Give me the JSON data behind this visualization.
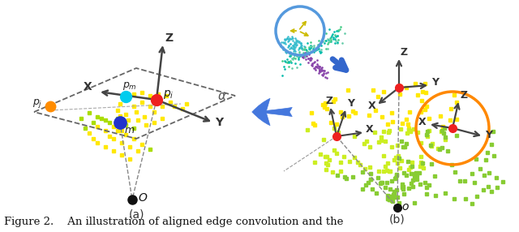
{
  "fig_width": 6.4,
  "fig_height": 2.86,
  "dpi": 100,
  "bg_color": "#ffffff",
  "caption": "Figure 2.    An illustration of aligned edge convolution and the",
  "caption_fontsize": 9.5,
  "panel_a_label": "(a)",
  "panel_b_label": "(b)"
}
